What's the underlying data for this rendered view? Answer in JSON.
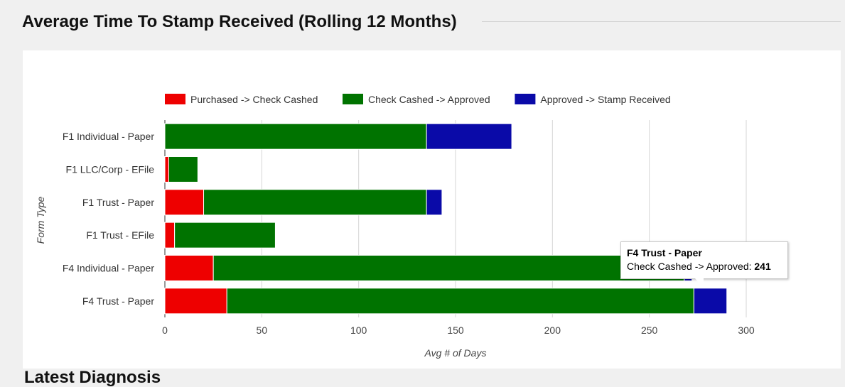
{
  "page": {
    "title": "Average Time To Stamp Received (Rolling 12 Months)",
    "next_section_title": "Latest Diagnosis"
  },
  "chart_data": {
    "type": "bar",
    "orientation": "horizontal",
    "stacked": true,
    "categories": [
      "F1 Individual - Paper",
      "F1 LLC/Corp - EFile",
      "F1 Trust - Paper",
      "F1 Trust - EFile",
      "F4 Individual - Paper",
      "F4 Trust - Paper"
    ],
    "series": [
      {
        "name": "Purchased -> Check Cashed",
        "color": "#ee0000",
        "values": [
          0,
          2,
          20,
          5,
          25,
          32
        ]
      },
      {
        "name": "Check Cashed -> Approved",
        "color": "#007300",
        "values": [
          135,
          15,
          115,
          52,
          243,
          241
        ]
      },
      {
        "name": "Approved -> Stamp Received",
        "color": "#0a0aa8",
        "values": [
          44,
          0,
          8,
          0,
          4,
          17
        ]
      }
    ],
    "xlabel": "Avg # of Days",
    "ylabel": "Form Type",
    "xlim": [
      0,
      300
    ],
    "xticks": [
      "0",
      "50",
      "100",
      "150",
      "200",
      "250",
      "300"
    ],
    "grid": true,
    "legend_position": "top"
  },
  "tooltip": {
    "title": "F4 Trust - Paper",
    "label": "Check Cashed -> Approved:",
    "value": "241"
  }
}
